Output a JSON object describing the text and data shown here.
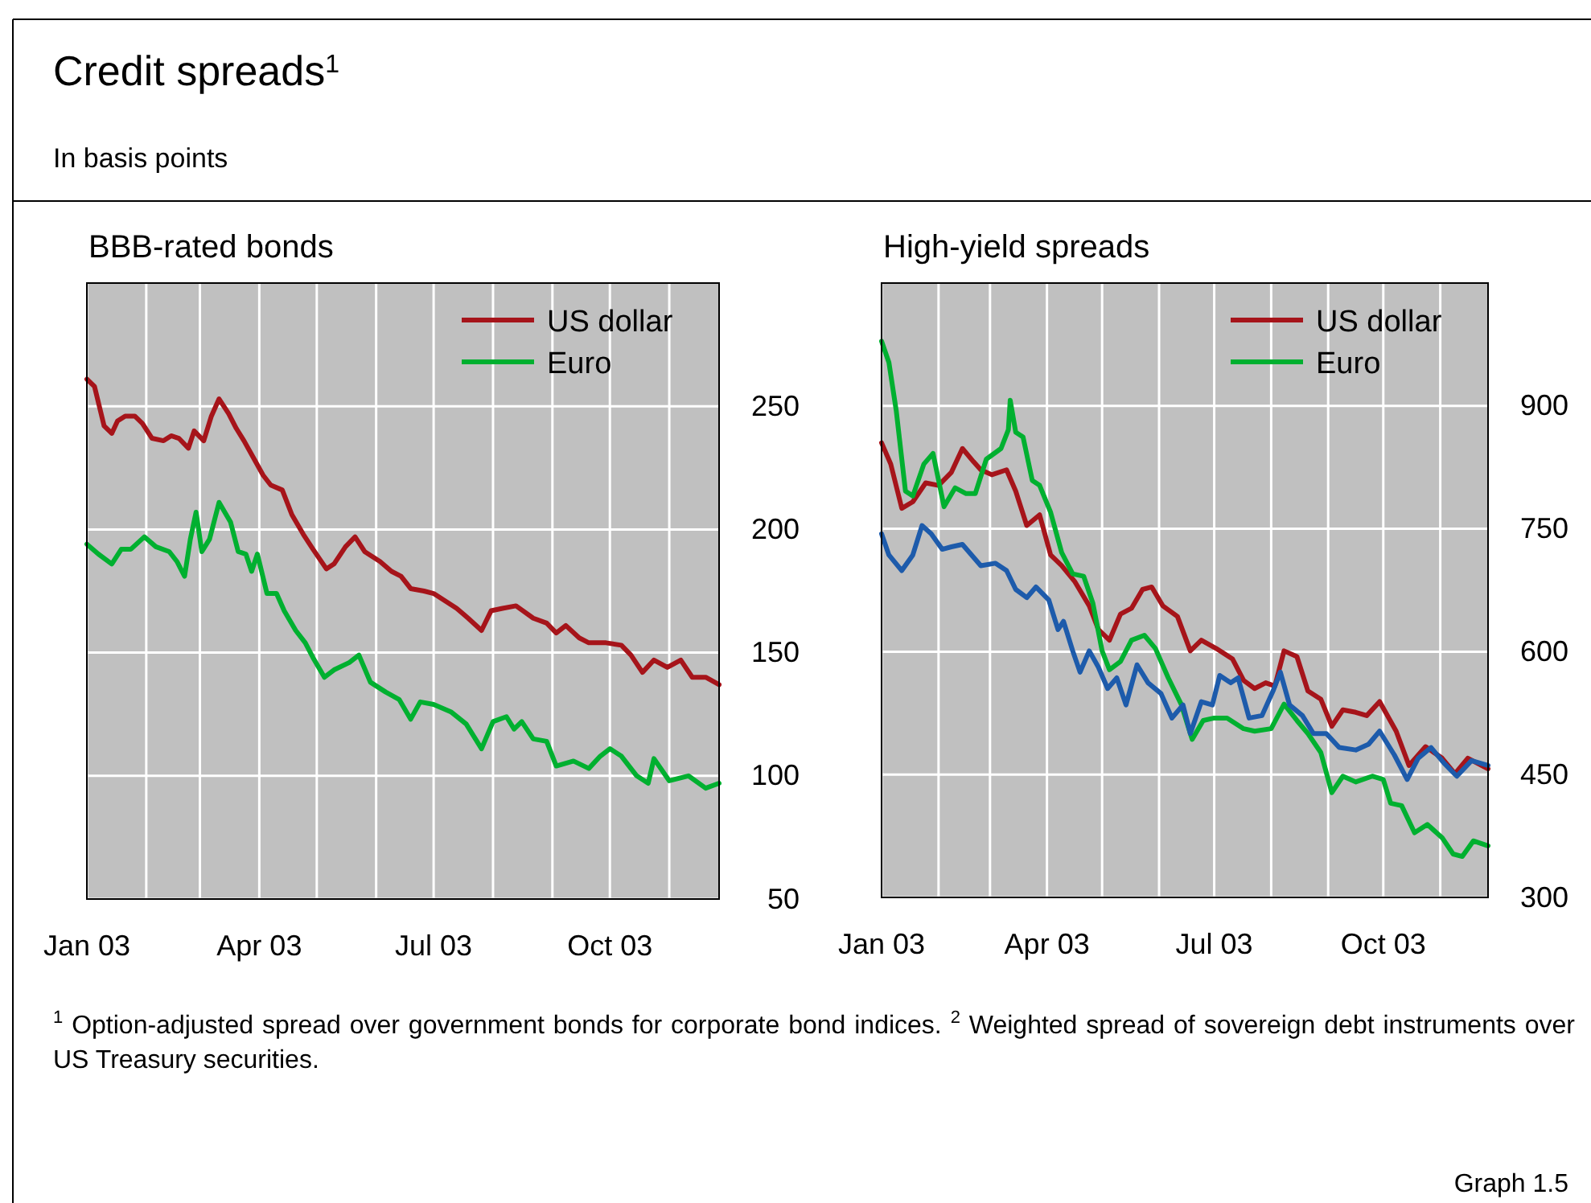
{
  "chart_data": [
    {
      "type": "line",
      "title": "BBB-rated bonds",
      "annotations": [
        "Credit spreads$^{1}$",
        "In basis points"
      ],
      "xlim": [
        "2003-01-01",
        "2003-11-27"
      ],
      "xticks": [
        {
          "value": "2003-01-01",
          "label": "Jan 03"
        },
        {
          "value": "2003-02-01",
          "label": null
        },
        {
          "value": "2003-03-01",
          "label": null
        },
        {
          "value": "2003-04-01",
          "label": "Apr 03"
        },
        {
          "value": "2003-05-01",
          "label": null
        },
        {
          "value": "2003-06-01",
          "label": null
        },
        {
          "value": "2003-07-01",
          "label": "Jul 03"
        },
        {
          "value": "2003-08-01",
          "label": null
        },
        {
          "value": "2003-09-01",
          "label": null
        },
        {
          "value": "2003-10-01",
          "label": "Oct 03"
        },
        {
          "value": "2003-11-01",
          "label": null
        }
      ],
      "ylim": [
        50,
        300
      ],
      "yticks": [
        50,
        100,
        150,
        200,
        250
      ],
      "grid": true,
      "legend": "top right",
      "line_style": "solid",
      "marker": "none",
      "series": [
        {
          "name": "US dollar",
          "color": "#a6141a",
          "x": [
            "2003-01-01",
            "2003-01-05",
            "2003-01-10",
            "2003-01-14",
            "2003-01-17",
            "2003-01-21",
            "2003-01-26",
            "2003-01-30",
            "2003-02-04",
            "2003-02-10",
            "2003-02-14",
            "2003-02-18",
            "2003-02-23",
            "2003-02-26",
            "2003-03-03",
            "2003-03-07",
            "2003-03-11",
            "2003-03-16",
            "2003-03-20",
            "2003-03-24",
            "2003-03-29",
            "2003-04-03",
            "2003-04-07",
            "2003-04-13",
            "2003-04-18",
            "2003-04-24",
            "2003-04-29",
            "2003-05-06",
            "2003-05-10",
            "2003-05-16",
            "2003-05-21",
            "2003-05-26",
            "2003-06-03",
            "2003-06-09",
            "2003-06-14",
            "2003-06-19",
            "2003-06-26",
            "2003-07-01",
            "2003-07-07",
            "2003-07-13",
            "2003-07-19",
            "2003-07-26",
            "2003-07-31",
            "2003-08-06",
            "2003-08-13",
            "2003-08-22",
            "2003-08-29",
            "2003-09-03",
            "2003-09-08",
            "2003-09-15",
            "2003-09-20",
            "2003-09-29",
            "2003-10-07",
            "2003-10-12",
            "2003-10-18",
            "2003-10-24",
            "2003-10-31",
            "2003-11-07",
            "2003-11-13",
            "2003-11-20",
            "2003-11-27"
          ],
          "values": [
            261,
            258,
            242,
            239,
            244,
            246,
            246,
            243,
            237,
            236,
            238,
            237,
            233,
            240,
            236,
            246,
            253,
            247,
            241,
            236,
            229,
            222,
            218,
            216,
            206,
            198,
            192,
            184,
            186,
            193,
            197,
            191,
            187,
            183,
            181,
            176,
            175,
            174,
            171,
            168,
            164,
            159,
            167,
            168,
            169,
            164,
            162,
            158,
            161,
            156,
            154,
            154,
            153,
            149,
            142,
            147,
            144,
            147,
            140,
            140,
            137
          ]
        },
        {
          "name": "Euro",
          "color": "#00b030",
          "x": [
            "2003-01-01",
            "2003-01-07",
            "2003-01-14",
            "2003-01-19",
            "2003-01-24",
            "2003-01-31",
            "2003-02-06",
            "2003-02-13",
            "2003-02-17",
            "2003-02-21",
            "2003-02-24",
            "2003-02-27",
            "2003-03-02",
            "2003-03-06",
            "2003-03-11",
            "2003-03-17",
            "2003-03-21",
            "2003-03-25",
            "2003-03-28",
            "2003-03-31",
            "2003-04-05",
            "2003-04-10",
            "2003-04-14",
            "2003-04-20",
            "2003-04-25",
            "2003-04-29",
            "2003-05-05",
            "2003-05-10",
            "2003-05-18",
            "2003-05-23",
            "2003-05-29",
            "2003-06-06",
            "2003-06-13",
            "2003-06-19",
            "2003-06-24",
            "2003-07-01",
            "2003-07-10",
            "2003-07-18",
            "2003-07-26",
            "2003-08-01",
            "2003-08-08",
            "2003-08-12",
            "2003-08-16",
            "2003-08-22",
            "2003-08-29",
            "2003-09-03",
            "2003-09-12",
            "2003-09-20",
            "2003-09-26",
            "2003-10-01",
            "2003-10-07",
            "2003-10-15",
            "2003-10-21",
            "2003-10-24",
            "2003-11-01",
            "2003-11-11",
            "2003-11-20",
            "2003-11-27"
          ],
          "values": [
            194,
            190,
            186,
            192,
            192,
            197,
            193,
            191,
            187,
            181,
            196,
            207,
            191,
            196,
            211,
            203,
            191,
            190,
            183,
            190,
            174,
            174,
            167,
            159,
            154,
            148,
            140,
            143,
            146,
            149,
            138,
            134,
            131,
            123,
            130,
            129,
            126,
            121,
            111,
            122,
            124,
            119,
            122,
            115,
            114,
            104,
            106,
            103,
            108,
            111,
            108,
            100,
            97,
            107,
            98,
            100,
            95,
            97
          ]
        }
      ]
    },
    {
      "type": "line",
      "title": "High-yield spreads",
      "annotations": [
        "$^{1}$ Option-adjusted spread over government bonds for corporate bond indices. $^{2}$ Weighted spread of sovereign debt instruments over US Treasury securities.",
        "Graph 1.5"
      ],
      "xlim": [
        "2003-01-01",
        "2003-11-27"
      ],
      "xticks": [
        {
          "value": "2003-01-01",
          "label": "Jan 03"
        },
        {
          "value": "2003-02-01",
          "label": null
        },
        {
          "value": "2003-03-01",
          "label": null
        },
        {
          "value": "2003-04-01",
          "label": "Apr 03"
        },
        {
          "value": "2003-05-01",
          "label": null
        },
        {
          "value": "2003-06-01",
          "label": null
        },
        {
          "value": "2003-07-01",
          "label": "Jul 03"
        },
        {
          "value": "2003-08-01",
          "label": null
        },
        {
          "value": "2003-09-01",
          "label": null
        },
        {
          "value": "2003-10-01",
          "label": "Oct 03"
        },
        {
          "value": "2003-11-01",
          "label": null
        }
      ],
      "ylim": [
        300,
        1050
      ],
      "yticks": [
        300,
        450,
        600,
        750,
        900
      ],
      "grid": true,
      "legend": "top right",
      "line_style": "solid",
      "marker": "none",
      "series": [
        {
          "name": "US dollar",
          "color": "#a6141a",
          "x": [
            "2003-01-01",
            "2003-01-06",
            "2003-01-12",
            "2003-01-18",
            "2003-01-25",
            "2003-02-01",
            "2003-02-08",
            "2003-02-14",
            "2003-02-20",
            "2003-02-24",
            "2003-03-02",
            "2003-03-10",
            "2003-03-15",
            "2003-03-21",
            "2003-03-28",
            "2003-04-03",
            "2003-04-09",
            "2003-04-16",
            "2003-04-24",
            "2003-04-29",
            "2003-05-05",
            "2003-05-11",
            "2003-05-17",
            "2003-05-23",
            "2003-05-28",
            "2003-06-03",
            "2003-06-11",
            "2003-06-18",
            "2003-06-24",
            "2003-07-02",
            "2003-07-11",
            "2003-07-17",
            "2003-07-23",
            "2003-07-29",
            "2003-08-03",
            "2003-08-08",
            "2003-08-15",
            "2003-08-21",
            "2003-08-28",
            "2003-09-03",
            "2003-09-09",
            "2003-09-16",
            "2003-09-22",
            "2003-09-29",
            "2003-10-08",
            "2003-10-15",
            "2003-10-24",
            "2003-11-02",
            "2003-11-09",
            "2003-11-16",
            "2003-11-27"
          ],
          "values": [
            855,
            829,
            775,
            783,
            806,
            803,
            819,
            848,
            832,
            822,
            816,
            822,
            796,
            754,
            767,
            718,
            705,
            686,
            656,
            627,
            614,
            646,
            653,
            676,
            679,
            656,
            643,
            601,
            614,
            604,
            591,
            565,
            555,
            562,
            558,
            601,
            594,
            552,
            542,
            509,
            529,
            526,
            522,
            539,
            503,
            461,
            484,
            470,
            451,
            470,
            457
          ]
        },
        {
          "name": "Euro",
          "color": "#00b030",
          "x": [
            "2003-01-01",
            "2003-01-05",
            "2003-01-09",
            "2003-01-14",
            "2003-01-18",
            "2003-01-24",
            "2003-01-29",
            "2003-02-04",
            "2003-02-10",
            "2003-02-16",
            "2003-02-21",
            "2003-02-27",
            "2003-03-07",
            "2003-03-11",
            "2003-03-12",
            "2003-03-15",
            "2003-03-19",
            "2003-03-24",
            "2003-03-28",
            "2003-04-03",
            "2003-04-09",
            "2003-04-15",
            "2003-04-21",
            "2003-04-26",
            "2003-05-01",
            "2003-05-05",
            "2003-05-11",
            "2003-05-17",
            "2003-05-24",
            "2003-05-30",
            "2003-06-06",
            "2003-06-13",
            "2003-06-19",
            "2003-06-25",
            "2003-07-01",
            "2003-07-08",
            "2003-07-17",
            "2003-07-23",
            "2003-08-01",
            "2003-08-08",
            "2003-08-15",
            "2003-08-21",
            "2003-08-28",
            "2003-09-03",
            "2003-09-09",
            "2003-09-16",
            "2003-09-25",
            "2003-10-01",
            "2003-10-05",
            "2003-10-11",
            "2003-10-18",
            "2003-10-25",
            "2003-11-02",
            "2003-11-08",
            "2003-11-13",
            "2003-11-19",
            "2003-11-27"
          ],
          "values": [
            979,
            953,
            894,
            796,
            790,
            829,
            842,
            777,
            800,
            793,
            793,
            835,
            848,
            871,
            907,
            868,
            862,
            809,
            803,
            770,
            721,
            695,
            692,
            659,
            601,
            578,
            588,
            614,
            620,
            604,
            568,
            536,
            493,
            516,
            519,
            519,
            506,
            503,
            506,
            536,
            516,
            500,
            477,
            428,
            448,
            441,
            448,
            444,
            415,
            412,
            379,
            389,
            373,
            353,
            350,
            369,
            363
          ]
        },
        {
          "color": "#1d5bab",
          "x": [
            "2003-01-01",
            "2003-01-05",
            "2003-01-12",
            "2003-01-18",
            "2003-01-23",
            "2003-01-28",
            "2003-02-03",
            "2003-02-08",
            "2003-02-14",
            "2003-02-19",
            "2003-02-24",
            "2003-03-04",
            "2003-03-10",
            "2003-03-15",
            "2003-03-21",
            "2003-03-26",
            "2003-04-02",
            "2003-04-07",
            "2003-04-10",
            "2003-04-15",
            "2003-04-19",
            "2003-04-24",
            "2003-04-29",
            "2003-05-04",
            "2003-05-09",
            "2003-05-14",
            "2003-05-20",
            "2003-05-26",
            "2003-06-02",
            "2003-06-08",
            "2003-06-14",
            "2003-06-18",
            "2003-06-24",
            "2003-06-30",
            "2003-07-04",
            "2003-07-10",
            "2003-07-14",
            "2003-07-20",
            "2003-07-27",
            "2003-08-02",
            "2003-08-06",
            "2003-08-11",
            "2003-08-18",
            "2003-08-24",
            "2003-08-31",
            "2003-09-07",
            "2003-09-16",
            "2003-09-23",
            "2003-09-29",
            "2003-10-07",
            "2003-10-14",
            "2003-10-20",
            "2003-10-27",
            "2003-11-03",
            "2003-11-10",
            "2003-11-18",
            "2003-11-27"
          ],
          "values": [
            744,
            718,
            699,
            718,
            754,
            744,
            725,
            728,
            731,
            718,
            705,
            708,
            699,
            676,
            666,
            679,
            663,
            627,
            637,
            601,
            575,
            601,
            581,
            555,
            568,
            535,
            584,
            562,
            549,
            519,
            535,
            500,
            539,
            535,
            571,
            562,
            568,
            519,
            522,
            552,
            575,
            535,
            522,
            500,
            500,
            483,
            480,
            487,
            503,
            474,
            444,
            470,
            483,
            464,
            448,
            467,
            461
          ]
        }
      ]
    }
  ]
}
